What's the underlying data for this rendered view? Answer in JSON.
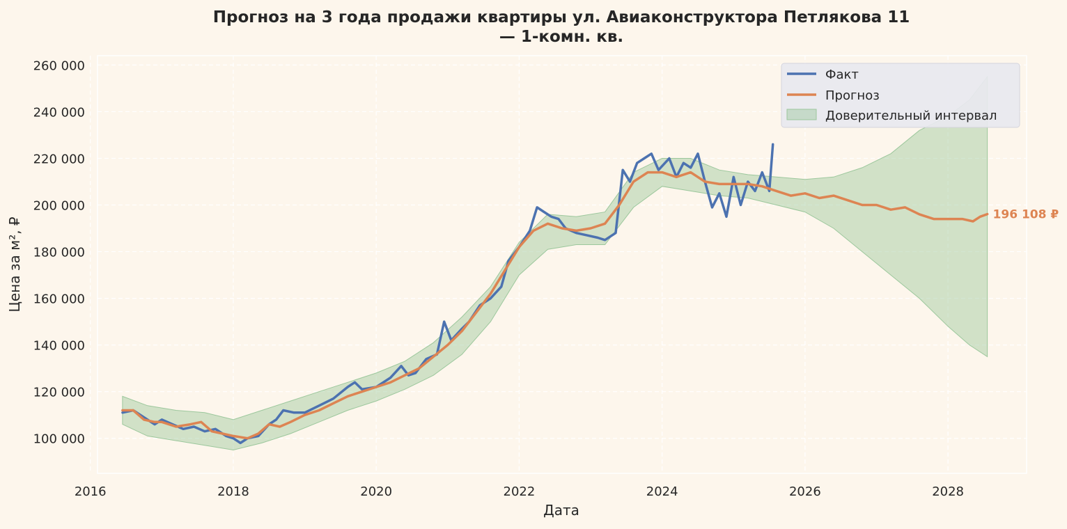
{
  "chart_data": {
    "type": "line",
    "title_line1": "Прогноз на 3 года продажи квартиры  ул. Авиаконструктора Петлякова 11",
    "title_line2": "— 1-комн. кв.",
    "xlabel": "Дата",
    "ylabel": "Цена за м², ₽",
    "xlim": [
      2016.1,
      2029.1
    ],
    "ylim": [
      85000,
      264000
    ],
    "xticks": [
      2016,
      2018,
      2020,
      2022,
      2024,
      2026,
      2028
    ],
    "xtick_labels": [
      "2016",
      "2018",
      "2020",
      "2022",
      "2024",
      "2026",
      "2028"
    ],
    "yticks": [
      100000,
      120000,
      140000,
      160000,
      180000,
      200000,
      220000,
      240000,
      260000
    ],
    "ytick_labels": [
      "100 000",
      "120 000",
      "140 000",
      "160 000",
      "180 000",
      "200 000",
      "220 000",
      "240 000",
      "260 000"
    ],
    "grid": true,
    "legend_position": "top-right",
    "legend": [
      "Факт",
      "Прогноз",
      "Доверительный интервал"
    ],
    "end_label": "196 108 ₽",
    "end_value": 196108,
    "colors": {
      "fact": "#4c72b0",
      "forecast": "#dd8452",
      "interval": "#9cc79c",
      "background": "#fdf6ec",
      "plot_background": "#fdf6ec",
      "grid": "#ffffff",
      "text": "#262626"
    },
    "series": [
      {
        "name": "Факт",
        "x": [
          2016.45,
          2016.6,
          2016.75,
          2016.9,
          2017.0,
          2017.15,
          2017.3,
          2017.45,
          2017.6,
          2017.75,
          2017.9,
          2018.0,
          2018.1,
          2018.2,
          2018.35,
          2018.5,
          2018.6,
          2018.7,
          2018.85,
          2019.0,
          2019.2,
          2019.4,
          2019.6,
          2019.7,
          2019.8,
          2020.0,
          2020.2,
          2020.35,
          2020.45,
          2020.55,
          2020.7,
          2020.85,
          2020.95,
          2021.05,
          2021.2,
          2021.3,
          2021.45,
          2021.6,
          2021.75,
          2021.85,
          2022.0,
          2022.15,
          2022.25,
          2022.35,
          2022.45,
          2022.55,
          2022.65,
          2022.8,
          2022.95,
          2023.1,
          2023.2,
          2023.35,
          2023.45,
          2023.55,
          2023.65,
          2023.75,
          2023.85,
          2023.95,
          2024.1,
          2024.2,
          2024.3,
          2024.4,
          2024.5,
          2024.6,
          2024.7,
          2024.8,
          2024.9,
          2025.0,
          2025.1,
          2025.2,
          2025.3,
          2025.4,
          2025.5,
          2025.55
        ],
        "values": [
          111000,
          112000,
          109000,
          106000,
          108000,
          106000,
          104000,
          105000,
          103000,
          104000,
          101000,
          100000,
          98000,
          100000,
          101000,
          106000,
          108000,
          112000,
          111000,
          111000,
          114000,
          117000,
          122000,
          124000,
          121000,
          122000,
          126000,
          131000,
          127000,
          128000,
          134000,
          136000,
          150000,
          142000,
          147000,
          150000,
          157000,
          160000,
          165000,
          176000,
          182000,
          189000,
          199000,
          197000,
          195000,
          194000,
          190000,
          188000,
          187000,
          186000,
          185000,
          188000,
          215000,
          210000,
          218000,
          220000,
          222000,
          215000,
          220000,
          212000,
          218000,
          216000,
          222000,
          210000,
          199000,
          205000,
          195000,
          212000,
          200000,
          210000,
          206000,
          214000,
          206000,
          226000
        ]
      },
      {
        "name": "Прогноз",
        "x": [
          2016.45,
          2016.6,
          2016.75,
          2016.9,
          2017.0,
          2017.2,
          2017.4,
          2017.55,
          2017.7,
          2017.85,
          2018.0,
          2018.2,
          2018.35,
          2018.5,
          2018.65,
          2018.8,
          2019.0,
          2019.2,
          2019.4,
          2019.6,
          2019.8,
          2020.0,
          2020.2,
          2020.4,
          2020.6,
          2020.8,
          2021.0,
          2021.2,
          2021.4,
          2021.6,
          2021.8,
          2022.0,
          2022.2,
          2022.4,
          2022.6,
          2022.8,
          2023.0,
          2023.2,
          2023.4,
          2023.6,
          2023.8,
          2024.0,
          2024.2,
          2024.4,
          2024.6,
          2024.8,
          2025.0,
          2025.2,
          2025.4,
          2025.6,
          2025.8,
          2026.0,
          2026.2,
          2026.4,
          2026.6,
          2026.8,
          2027.0,
          2027.2,
          2027.4,
          2027.6,
          2027.8,
          2028.0,
          2028.2,
          2028.35,
          2028.45,
          2028.55
        ],
        "values": [
          112000,
          112000,
          108000,
          107000,
          107000,
          105000,
          106000,
          107000,
          103000,
          102000,
          101000,
          100000,
          102000,
          106000,
          105000,
          107000,
          110000,
          112000,
          115000,
          118000,
          120000,
          122000,
          124000,
          127000,
          130000,
          135000,
          140000,
          146000,
          154000,
          162000,
          172000,
          182000,
          189000,
          192000,
          190000,
          189000,
          190000,
          192000,
          200000,
          210000,
          214000,
          214000,
          212000,
          214000,
          210000,
          209000,
          209000,
          209000,
          208000,
          206000,
          204000,
          205000,
          203000,
          204000,
          202000,
          200000,
          200000,
          198000,
          199000,
          196000,
          194000,
          194000,
          194000,
          193000,
          195000,
          196108
        ]
      }
    ],
    "interval": {
      "name": "Доверительный интервал",
      "x": [
        2016.45,
        2016.8,
        2017.2,
        2017.6,
        2018.0,
        2018.4,
        2018.8,
        2019.2,
        2019.6,
        2020.0,
        2020.4,
        2020.8,
        2021.2,
        2021.6,
        2022.0,
        2022.4,
        2022.8,
        2023.2,
        2023.6,
        2024.0,
        2024.4,
        2024.8,
        2025.2,
        2025.6,
        2026.0,
        2026.4,
        2026.8,
        2027.2,
        2027.6,
        2028.0,
        2028.3,
        2028.55
      ],
      "lower": [
        106000,
        101000,
        99000,
        97000,
        95000,
        98000,
        102000,
        107000,
        112000,
        116000,
        121000,
        127000,
        136000,
        150000,
        170000,
        181000,
        183000,
        183000,
        199000,
        208000,
        206000,
        204000,
        203000,
        200000,
        197000,
        190000,
        180000,
        170000,
        160000,
        148000,
        140000,
        135000
      ],
      "upper": [
        118000,
        114000,
        112000,
        111000,
        108000,
        112000,
        116000,
        120000,
        124000,
        128000,
        133000,
        141000,
        152000,
        165000,
        184000,
        196000,
        195000,
        197000,
        214000,
        220000,
        220000,
        215000,
        213000,
        212000,
        211000,
        212000,
        216000,
        222000,
        232000,
        238000,
        245000,
        255000
      ]
    }
  }
}
